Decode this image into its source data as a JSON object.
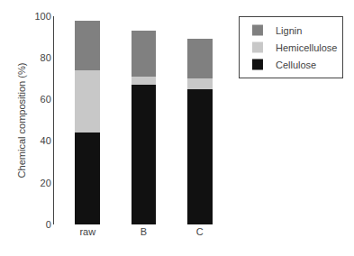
{
  "chart_data": {
    "type": "bar",
    "stacked": true,
    "categories": [
      "raw",
      "B",
      "C"
    ],
    "series": [
      {
        "name": "Cellulose",
        "color": "#111111",
        "values": [
          44,
          67,
          65
        ]
      },
      {
        "name": "Hemicellulose",
        "color": "#c8c8c8",
        "values": [
          30,
          4,
          5
        ]
      },
      {
        "name": "Lignin",
        "color": "#808080",
        "values": [
          24,
          22,
          19
        ]
      }
    ],
    "ylabel": "Chemical composition (%)",
    "ylim": [
      0,
      100
    ],
    "yticks": [
      0,
      20,
      40,
      60,
      80,
      100
    ],
    "grid": false,
    "legend": "right"
  }
}
